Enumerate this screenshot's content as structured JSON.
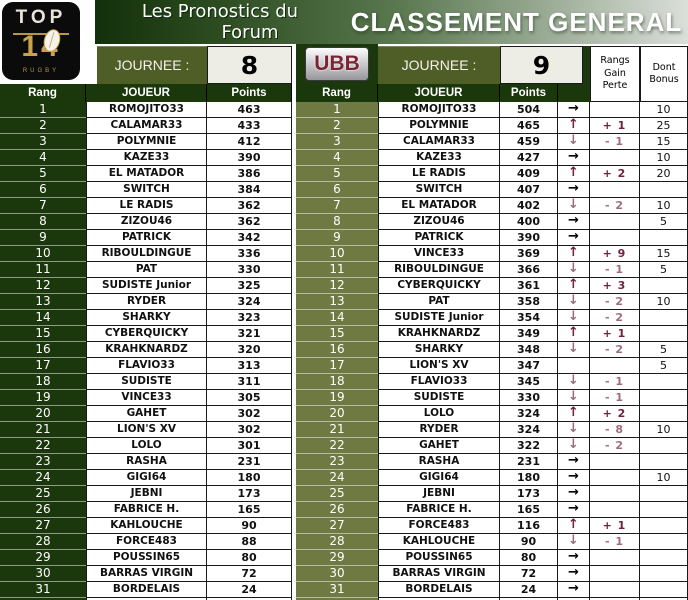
{
  "header": {
    "title_line1": "Les Pronostics du",
    "title_line2": "Forum",
    "classement": "CLASSEMENT GENERAL",
    "journee_label_left": "JOURNEE :",
    "journee_label_right": "JOURNEE :",
    "journee_left": "8",
    "journee_right": "9",
    "rangs_lines": [
      "Rangs",
      "Gain",
      "Perte"
    ],
    "dont_lines": [
      "Dont",
      "Bonus"
    ]
  },
  "logos": {
    "top14_top": "TOP",
    "top14_num": "14",
    "top14_rugby": "RUGBY",
    "ubb": "UBB"
  },
  "columns": {
    "rang": "Rang",
    "joueur": "JOUEUR",
    "points": "Points"
  },
  "trend_glyphs": {
    "up": "↑",
    "down": "↓",
    "right": "→",
    "none": ""
  },
  "left_table": {
    "rows": [
      {
        "rang": "1",
        "joueur": "ROMOJITO33",
        "points": "463"
      },
      {
        "rang": "2",
        "joueur": "CALAMAR33",
        "points": "433"
      },
      {
        "rang": "3",
        "joueur": "POLYMNIE",
        "points": "412"
      },
      {
        "rang": "4",
        "joueur": "KAZE33",
        "points": "390"
      },
      {
        "rang": "5",
        "joueur": "EL MATADOR",
        "points": "386"
      },
      {
        "rang": "6",
        "joueur": "SWITCH",
        "points": "384"
      },
      {
        "rang": "7",
        "joueur": "LE RADIS",
        "points": "362"
      },
      {
        "rang": "8",
        "joueur": "ZIZOU46",
        "points": "362"
      },
      {
        "rang": "9",
        "joueur": "PATRICK",
        "points": "342"
      },
      {
        "rang": "10",
        "joueur": "RIBOULDINGUE",
        "points": "336"
      },
      {
        "rang": "11",
        "joueur": "PAT",
        "points": "330"
      },
      {
        "rang": "12",
        "joueur": "SUDISTE Junior",
        "points": "325"
      },
      {
        "rang": "13",
        "joueur": "RYDER",
        "points": "324"
      },
      {
        "rang": "14",
        "joueur": "SHARKY",
        "points": "323"
      },
      {
        "rang": "15",
        "joueur": "CYBERQUICKY",
        "points": "321"
      },
      {
        "rang": "16",
        "joueur": "KRAHKNARDZ",
        "points": "320"
      },
      {
        "rang": "17",
        "joueur": "FLAVIO33",
        "points": "313"
      },
      {
        "rang": "18",
        "joueur": "SUDISTE",
        "points": "311"
      },
      {
        "rang": "19",
        "joueur": "VINCE33",
        "points": "305"
      },
      {
        "rang": "20",
        "joueur": "GAHET",
        "points": "302"
      },
      {
        "rang": "21",
        "joueur": "LION'S XV",
        "points": "302"
      },
      {
        "rang": "22",
        "joueur": "LOLO",
        "points": "301"
      },
      {
        "rang": "23",
        "joueur": "RASHA",
        "points": "231"
      },
      {
        "rang": "24",
        "joueur": "GIGI64",
        "points": "180"
      },
      {
        "rang": "25",
        "joueur": "JEBNI",
        "points": "173"
      },
      {
        "rang": "26",
        "joueur": "FABRICE H.",
        "points": "165"
      },
      {
        "rang": "27",
        "joueur": "KAHLOUCHE",
        "points": "90"
      },
      {
        "rang": "28",
        "joueur": "FORCE483",
        "points": "88"
      },
      {
        "rang": "29",
        "joueur": "POUSSIN65",
        "points": "80"
      },
      {
        "rang": "30",
        "joueur": "BARRAS VIRGIN",
        "points": "72"
      },
      {
        "rang": "31",
        "joueur": "BORDELAIS",
        "points": "24"
      }
    ]
  },
  "right_table": {
    "rows": [
      {
        "rang": "1",
        "joueur": "ROMOJITO33",
        "points": "504",
        "trend": "right",
        "delta": "",
        "bonus": "10"
      },
      {
        "rang": "2",
        "joueur": "POLYMNIE",
        "points": "465",
        "trend": "up",
        "delta": "+ 1",
        "bonus": "25"
      },
      {
        "rang": "3",
        "joueur": "CALAMAR33",
        "points": "459",
        "trend": "down",
        "delta": "- 1",
        "bonus": "15"
      },
      {
        "rang": "4",
        "joueur": "KAZE33",
        "points": "427",
        "trend": "right",
        "delta": "",
        "bonus": "10"
      },
      {
        "rang": "5",
        "joueur": "LE RADIS",
        "points": "409",
        "trend": "up",
        "delta": "+ 2",
        "bonus": "20"
      },
      {
        "rang": "6",
        "joueur": "SWITCH",
        "points": "407",
        "trend": "right",
        "delta": "",
        "bonus": ""
      },
      {
        "rang": "7",
        "joueur": "EL MATADOR",
        "points": "402",
        "trend": "down",
        "delta": "- 2",
        "bonus": "10"
      },
      {
        "rang": "8",
        "joueur": "ZIZOU46",
        "points": "400",
        "trend": "right",
        "delta": "",
        "bonus": "5"
      },
      {
        "rang": "9",
        "joueur": "PATRICK",
        "points": "390",
        "trend": "right",
        "delta": "",
        "bonus": ""
      },
      {
        "rang": "10",
        "joueur": "VINCE33",
        "points": "369",
        "trend": "up",
        "delta": "+ 9",
        "bonus": "15"
      },
      {
        "rang": "11",
        "joueur": "RIBOULDINGUE",
        "points": "366",
        "trend": "down",
        "delta": "- 1",
        "bonus": "5"
      },
      {
        "rang": "12",
        "joueur": "CYBERQUICKY",
        "points": "361",
        "trend": "up",
        "delta": "+ 3",
        "bonus": ""
      },
      {
        "rang": "13",
        "joueur": "PAT",
        "points": "358",
        "trend": "down",
        "delta": "- 2",
        "bonus": "10"
      },
      {
        "rang": "14",
        "joueur": "SUDISTE Junior",
        "points": "354",
        "trend": "down",
        "delta": "- 2",
        "bonus": ""
      },
      {
        "rang": "15",
        "joueur": "KRAHKNARDZ",
        "points": "349",
        "trend": "up",
        "delta": "+ 1",
        "bonus": ""
      },
      {
        "rang": "16",
        "joueur": "SHARKY",
        "points": "348",
        "trend": "down",
        "delta": "- 2",
        "bonus": "5"
      },
      {
        "rang": "17",
        "joueur": "LION'S XV",
        "points": "347",
        "trend": "none",
        "delta": "",
        "bonus": "5"
      },
      {
        "rang": "18",
        "joueur": "FLAVIO33",
        "points": "345",
        "trend": "down",
        "delta": "- 1",
        "bonus": ""
      },
      {
        "rang": "19",
        "joueur": "SUDISTE",
        "points": "330",
        "trend": "down",
        "delta": "- 1",
        "bonus": ""
      },
      {
        "rang": "20",
        "joueur": "LOLO",
        "points": "324",
        "trend": "up",
        "delta": "+ 2",
        "bonus": ""
      },
      {
        "rang": "21",
        "joueur": "RYDER",
        "points": "324",
        "trend": "down",
        "delta": "- 8",
        "bonus": "10"
      },
      {
        "rang": "22",
        "joueur": "GAHET",
        "points": "322",
        "trend": "down",
        "delta": "- 2",
        "bonus": ""
      },
      {
        "rang": "23",
        "joueur": "RASHA",
        "points": "231",
        "trend": "right",
        "delta": "",
        "bonus": ""
      },
      {
        "rang": "24",
        "joueur": "GIGI64",
        "points": "180",
        "trend": "right",
        "delta": "",
        "bonus": "10"
      },
      {
        "rang": "25",
        "joueur": "JEBNI",
        "points": "173",
        "trend": "right",
        "delta": "",
        "bonus": ""
      },
      {
        "rang": "26",
        "joueur": "FABRICE H.",
        "points": "165",
        "trend": "right",
        "delta": "",
        "bonus": ""
      },
      {
        "rang": "27",
        "joueur": "FORCE483",
        "points": "116",
        "trend": "up",
        "delta": "+ 1",
        "bonus": ""
      },
      {
        "rang": "28",
        "joueur": "KAHLOUCHE",
        "points": "90",
        "trend": "down",
        "delta": "- 1",
        "bonus": ""
      },
      {
        "rang": "29",
        "joueur": "POUSSIN65",
        "points": "80",
        "trend": "right",
        "delta": "",
        "bonus": ""
      },
      {
        "rang": "30",
        "joueur": "BARRAS VIRGIN",
        "points": "72",
        "trend": "right",
        "delta": "",
        "bonus": ""
      },
      {
        "rang": "31",
        "joueur": "BORDELAIS",
        "points": "24",
        "trend": "right",
        "delta": "",
        "bonus": ""
      }
    ]
  },
  "colors": {
    "dark_green": "#1B380C",
    "olive_rank": "#6E7A42",
    "journee_green": "#4F5D26",
    "value_bg": "#EDEDE5",
    "gain_red": "#6E2340",
    "loss_mauve": "#A06B7E",
    "gold": "#C9A24B",
    "ubb_red": "#7A2433"
  }
}
